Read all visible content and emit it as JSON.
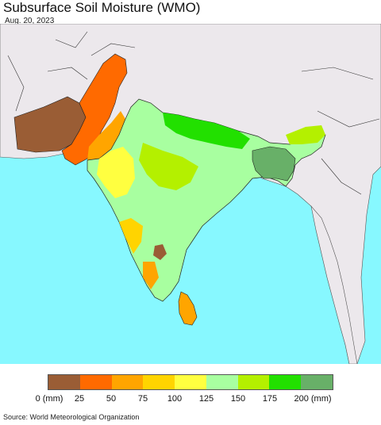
{
  "header": {
    "title": "Subsurface Soil Moisture (WMO)",
    "date": "Aug. 20, 2023"
  },
  "legend": {
    "labels": [
      "0 (mm)",
      "25",
      "50",
      "75",
      "100",
      "125",
      "150",
      "175",
      "200 (mm)"
    ],
    "colors": [
      "#9a5d35",
      "#ff6a00",
      "#ffa500",
      "#ffd400",
      "#ffff40",
      "#a8ffa0",
      "#b4f000",
      "#22e000",
      "#68b068"
    ]
  },
  "colors": {
    "ocean": "#87f8ff",
    "land_outside": "#ece8ec",
    "borders": "#222222"
  },
  "footer": {
    "source": "Source: World Meteorological Organization"
  }
}
